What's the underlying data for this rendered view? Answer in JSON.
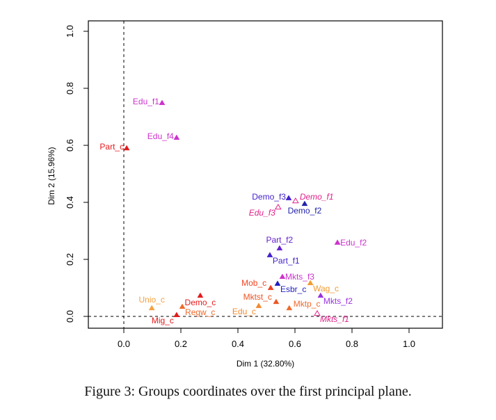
{
  "chart_data": {
    "type": "scatter",
    "xlabel": "Dim 1 (32.80%)",
    "ylabel": "Dim 2 (15.96%)",
    "xlim": [
      -0.12,
      1.12
    ],
    "ylim": [
      -0.04,
      1.04
    ],
    "x_ticks": [
      "0.0",
      "0.2",
      "0.4",
      "0.6",
      "0.8",
      "1.0"
    ],
    "y_ticks": [
      "0.0",
      "0.2",
      "0.4",
      "0.6",
      "0.8",
      "1.0"
    ],
    "reference_lines": {
      "x": 0,
      "y": 0,
      "style": "dashed"
    },
    "grid": false,
    "points": [
      {
        "label": "Part_c",
        "x": 0.01,
        "y": 0.59,
        "color": "#e41a1c",
        "filled": true,
        "italic": false,
        "label_pos": "left"
      },
      {
        "label": "Edu_f1",
        "x": 0.134,
        "y": 0.749,
        "color": "#cc33cc",
        "filled": true,
        "italic": false,
        "label_pos": "left"
      },
      {
        "label": "Edu_f4",
        "x": 0.185,
        "y": 0.627,
        "color": "#cc33cc",
        "filled": true,
        "italic": false,
        "label_pos": "left"
      },
      {
        "label": "Demo_f3",
        "x": 0.578,
        "y": 0.415,
        "color": "#4422cc",
        "filled": true,
        "italic": false,
        "label_pos": "left"
      },
      {
        "label": "Demo_f1",
        "x": 0.602,
        "y": 0.405,
        "color": "#e0208a",
        "filled": false,
        "italic": true,
        "label_pos": "right-up"
      },
      {
        "label": "Edu_f3",
        "x": 0.541,
        "y": 0.383,
        "color": "#e0208a",
        "filled": false,
        "italic": true,
        "label_pos": "left-down"
      },
      {
        "label": "Demo_f2",
        "x": 0.634,
        "y": 0.395,
        "color": "#2222aa",
        "filled": true,
        "italic": false,
        "label_pos": "below"
      },
      {
        "label": "Part_f2",
        "x": 0.546,
        "y": 0.239,
        "color": "#6622cc",
        "filled": true,
        "italic": false,
        "label_pos": "above"
      },
      {
        "label": "Part_f1",
        "x": 0.512,
        "y": 0.215,
        "color": "#4422cc",
        "filled": true,
        "italic": false,
        "label_pos": "right-down"
      },
      {
        "label": "Edu_f2",
        "x": 0.749,
        "y": 0.259,
        "color": "#cc33cc",
        "filled": true,
        "italic": false,
        "label_pos": "right"
      },
      {
        "label": "Mkts_f3",
        "x": 0.556,
        "y": 0.139,
        "color": "#cc33cc",
        "filled": true,
        "italic": false,
        "label_pos": "right"
      },
      {
        "label": "Esbr_c",
        "x": 0.539,
        "y": 0.115,
        "color": "#1f1fbf",
        "filled": true,
        "italic": false,
        "label_pos": "right-down"
      },
      {
        "label": "Mob_c",
        "x": 0.515,
        "y": 0.1,
        "color": "#ee4422",
        "filled": true,
        "italic": false,
        "label_pos": "left-up"
      },
      {
        "label": "Wag_c",
        "x": 0.654,
        "y": 0.117,
        "color": "#f39a30",
        "filled": true,
        "italic": false,
        "label_pos": "right-down"
      },
      {
        "label": "Mkts_f2",
        "x": 0.69,
        "y": 0.073,
        "color": "#9933dd",
        "filled": true,
        "italic": false,
        "label_pos": "right-down"
      },
      {
        "label": "Mktst_c",
        "x": 0.534,
        "y": 0.051,
        "color": "#ee5522",
        "filled": true,
        "italic": false,
        "label_pos": "left-up"
      },
      {
        "label": "Edu_c",
        "x": 0.473,
        "y": 0.037,
        "color": "#f28a30",
        "filled": true,
        "italic": false,
        "label_pos": "left-down"
      },
      {
        "label": "Mktp_c",
        "x": 0.58,
        "y": 0.029,
        "color": "#f06a2a",
        "filled": true,
        "italic": false,
        "label_pos": "right-up"
      },
      {
        "label": "Mkts_f1",
        "x": 0.678,
        "y": 0.01,
        "color": "#e0208a",
        "filled": false,
        "italic": true,
        "label_pos": "right-down"
      },
      {
        "label": "Demo_c",
        "x": 0.268,
        "y": 0.073,
        "color": "#e41a1c",
        "filled": true,
        "italic": false,
        "label_pos": "below"
      },
      {
        "label": "Regw_c",
        "x": 0.205,
        "y": 0.034,
        "color": "#f06a2a",
        "filled": true,
        "italic": false,
        "label_pos": "right-down"
      },
      {
        "label": "Unio_c",
        "x": 0.098,
        "y": 0.029,
        "color": "#f5a040",
        "filled": true,
        "italic": false,
        "label_pos": "above"
      },
      {
        "label": "Mig_c",
        "x": 0.185,
        "y": 0.005,
        "color": "#e41a1c",
        "filled": true,
        "italic": false,
        "label_pos": "left-down"
      }
    ]
  },
  "caption": "Figure 3: Groups coordinates over the first principal plane."
}
